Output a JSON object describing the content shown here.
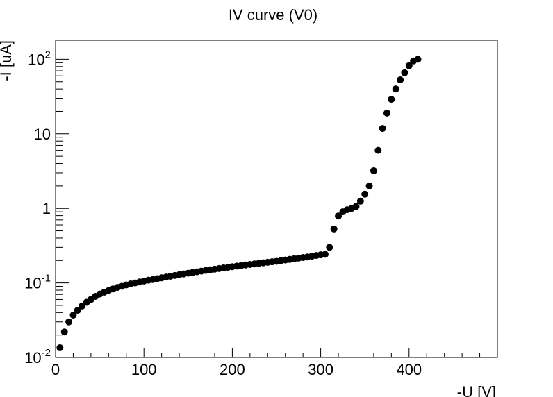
{
  "chart_data": {
    "type": "scatter",
    "title": "IV curve (V0)",
    "xlabel": "-U [V]",
    "ylabel": "-I [uA]",
    "xlim": [
      0,
      500
    ],
    "ylim": [
      0.01,
      180
    ],
    "yscale": "log",
    "grid": false,
    "legend": "none",
    "marker_color": "#000000",
    "x_ticks": [
      {
        "value": 0,
        "label": "0"
      },
      {
        "value": 100,
        "label": "100"
      },
      {
        "value": 200,
        "label": "200"
      },
      {
        "value": 300,
        "label": "300"
      },
      {
        "value": 400,
        "label": "400"
      }
    ],
    "y_ticks": [
      {
        "value": 0.01,
        "base": "10",
        "exp": "-2"
      },
      {
        "value": 0.1,
        "base": "10",
        "exp": "-1"
      },
      {
        "value": 1,
        "base": "1",
        "exp": ""
      },
      {
        "value": 10,
        "base": "10",
        "exp": ""
      },
      {
        "value": 100,
        "base": "10",
        "exp": "2"
      }
    ],
    "series": [
      {
        "points": [
          [
            5,
            0.0135
          ],
          [
            10,
            0.022
          ],
          [
            15,
            0.03
          ],
          [
            20,
            0.037
          ],
          [
            25,
            0.043
          ],
          [
            30,
            0.049
          ],
          [
            35,
            0.055
          ],
          [
            40,
            0.06
          ],
          [
            45,
            0.066
          ],
          [
            50,
            0.071
          ],
          [
            55,
            0.075
          ],
          [
            60,
            0.079
          ],
          [
            65,
            0.083
          ],
          [
            70,
            0.087
          ],
          [
            75,
            0.09
          ],
          [
            80,
            0.094
          ],
          [
            85,
            0.097
          ],
          [
            90,
            0.1
          ],
          [
            95,
            0.103
          ],
          [
            100,
            0.106
          ],
          [
            105,
            0.109
          ],
          [
            110,
            0.111
          ],
          [
            115,
            0.114
          ],
          [
            120,
            0.117
          ],
          [
            125,
            0.12
          ],
          [
            130,
            0.123
          ],
          [
            135,
            0.126
          ],
          [
            140,
            0.129
          ],
          [
            145,
            0.132
          ],
          [
            150,
            0.135
          ],
          [
            155,
            0.138
          ],
          [
            160,
            0.141
          ],
          [
            165,
            0.144
          ],
          [
            170,
            0.147
          ],
          [
            175,
            0.15
          ],
          [
            180,
            0.153
          ],
          [
            185,
            0.156
          ],
          [
            190,
            0.159
          ],
          [
            195,
            0.162
          ],
          [
            200,
            0.165
          ],
          [
            205,
            0.168
          ],
          [
            210,
            0.171
          ],
          [
            215,
            0.174
          ],
          [
            220,
            0.177
          ],
          [
            225,
            0.18
          ],
          [
            230,
            0.183
          ],
          [
            235,
            0.186
          ],
          [
            240,
            0.189
          ],
          [
            245,
            0.192
          ],
          [
            250,
            0.195
          ],
          [
            255,
            0.199
          ],
          [
            260,
            0.203
          ],
          [
            265,
            0.207
          ],
          [
            270,
            0.211
          ],
          [
            275,
            0.215
          ],
          [
            280,
            0.219
          ],
          [
            285,
            0.223
          ],
          [
            290,
            0.228
          ],
          [
            295,
            0.233
          ],
          [
            300,
            0.238
          ],
          [
            305,
            0.242
          ],
          [
            310,
            0.3
          ],
          [
            315,
            0.53
          ],
          [
            320,
            0.79
          ],
          [
            325,
            0.9
          ],
          [
            330,
            0.96
          ],
          [
            335,
            1.0
          ],
          [
            340,
            1.06
          ],
          [
            345,
            1.25
          ],
          [
            350,
            1.55
          ],
          [
            355,
            2.0
          ],
          [
            360,
            3.2
          ],
          [
            365,
            6.0
          ],
          [
            370,
            11.8
          ],
          [
            375,
            19.0
          ],
          [
            380,
            29.0
          ],
          [
            385,
            40.0
          ],
          [
            390,
            53.0
          ],
          [
            395,
            66.0
          ],
          [
            400,
            82.0
          ],
          [
            405,
            95.0
          ],
          [
            410,
            100.0
          ]
        ]
      }
    ]
  }
}
